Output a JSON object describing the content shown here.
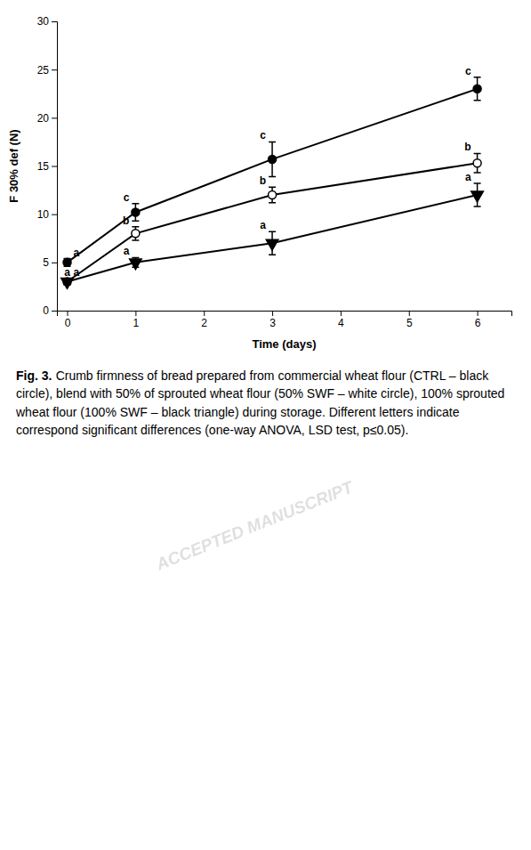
{
  "chart_data": {
    "type": "line",
    "x": [
      0,
      1,
      3,
      6
    ],
    "xlabel": "Time (days)",
    "ylabel": "F 30% def (N)",
    "xlim": [
      -0.15,
      6.5
    ],
    "ylim": [
      0,
      30
    ],
    "xticks": [
      0,
      1,
      2,
      3,
      4,
      5,
      6
    ],
    "yticks": [
      0,
      5,
      10,
      15,
      20,
      25,
      30
    ],
    "grid": false,
    "series": [
      {
        "color": "#000000",
        "marker": "circle",
        "line_style": "solid",
        "values": [
          5.0,
          10.2,
          15.7,
          23.0
        ],
        "errors": [
          0.4,
          0.9,
          1.8,
          1.2
        ],
        "point_labels": [
          "a",
          "c",
          "c",
          "c"
        ]
      },
      {
        "color": "#000000",
        "marker": "open-circle",
        "line_style": "solid",
        "values": [
          3.0,
          8.0,
          12.0,
          15.3
        ],
        "errors": [
          0.3,
          0.7,
          0.8,
          1.0
        ],
        "point_labels": [
          "a",
          "b",
          "b",
          "b"
        ]
      },
      {
        "color": "#000000",
        "marker": "triangle-down",
        "line_style": "solid",
        "values": [
          3.0,
          5.0,
          7.0,
          12.0
        ],
        "errors": [
          0.3,
          0.5,
          1.2,
          1.2
        ],
        "point_labels": [
          "a",
          "a",
          "a",
          "a"
        ]
      }
    ],
    "caption": {
      "label": "Fig. 3.",
      "text": "Crumb firmness of bread prepared from commercial wheat flour (CTRL – black circle), blend with 50% of sprouted wheat flour (50% SWF – white circle), 100% sprouted wheat flour (100% SWF – black triangle) during storage. Different letters indicate correspond significant differences (one-way ANOVA, LSD test, p≤0.05)."
    },
    "watermark": "ACCEPTED MANUSCRIPT"
  }
}
